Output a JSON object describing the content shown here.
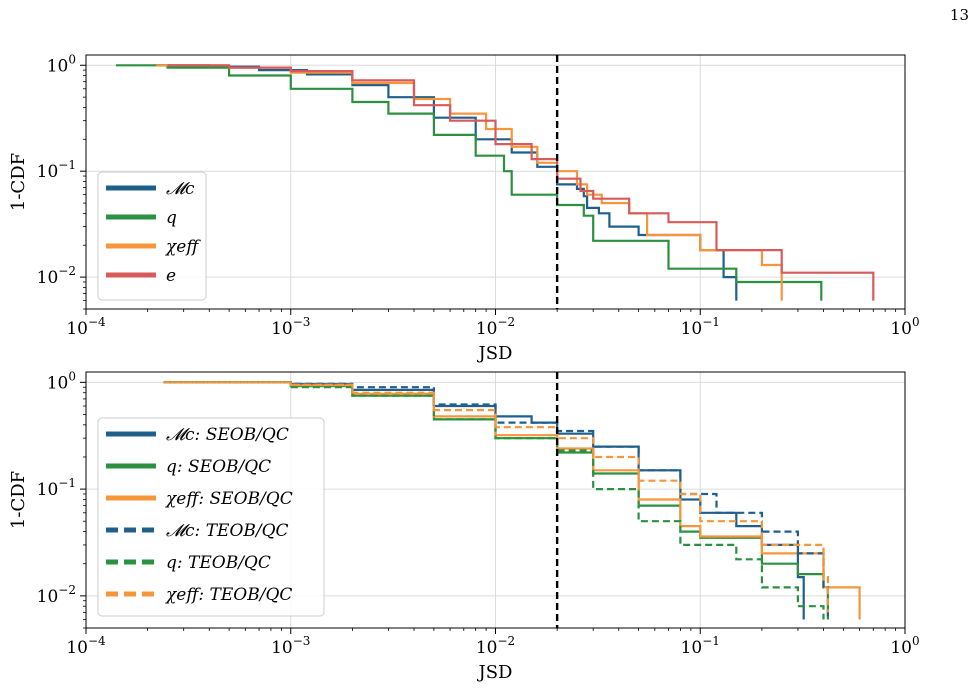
{
  "page": {
    "number": "13"
  },
  "colors": {
    "mc": "#1f5f8b",
    "q": "#2b9140",
    "chi": "#f7953b",
    "e": "#d95a5a",
    "threshold": "#000000",
    "grid": "#dcdcdc"
  },
  "chart_data": [
    {
      "type": "line",
      "xscale": "log",
      "yscale": "log",
      "xlim": [
        0.0001,
        1
      ],
      "ylim": [
        0.005,
        1.25
      ],
      "xlabel": "JSD",
      "ylabel": "1-CDF",
      "x_tick_labels": [
        "10^-4",
        "10^-3",
        "10^-2",
        "10^-1",
        "10^0"
      ],
      "y_tick_labels": [
        "10^-2",
        "10^-1",
        "10^0"
      ],
      "grid": true,
      "legend_position": "lower-left",
      "threshold_vline": 0.02,
      "series": [
        {
          "name": "M_c",
          "legend": "𝓜c",
          "color_key": "mc",
          "style": "solid",
          "points": [
            [
              0.00022,
              1.0
            ],
            [
              0.0004,
              0.97
            ],
            [
              0.0007,
              0.9
            ],
            [
              0.0012,
              0.82
            ],
            [
              0.002,
              0.65
            ],
            [
              0.003,
              0.5
            ],
            [
              0.005,
              0.32
            ],
            [
              0.008,
              0.2
            ],
            [
              0.012,
              0.15
            ],
            [
              0.016,
              0.11
            ],
            [
              0.02,
              0.075
            ],
            [
              0.025,
              0.068
            ],
            [
              0.027,
              0.058
            ],
            [
              0.028,
              0.045
            ],
            [
              0.032,
              0.04
            ],
            [
              0.036,
              0.03
            ],
            [
              0.05,
              0.025
            ],
            [
              0.1,
              0.018
            ],
            [
              0.13,
              0.01
            ],
            [
              0.15,
              0.006
            ]
          ]
        },
        {
          "name": "q",
          "legend": "q",
          "color_key": "q",
          "style": "solid",
          "points": [
            [
              0.00014,
              1.0
            ],
            [
              0.00025,
              0.95
            ],
            [
              0.0005,
              0.8
            ],
            [
              0.001,
              0.6
            ],
            [
              0.002,
              0.45
            ],
            [
              0.003,
              0.35
            ],
            [
              0.005,
              0.22
            ],
            [
              0.008,
              0.14
            ],
            [
              0.011,
              0.1
            ],
            [
              0.012,
              0.06
            ],
            [
              0.02,
              0.048
            ],
            [
              0.027,
              0.038
            ],
            [
              0.03,
              0.022
            ],
            [
              0.07,
              0.012
            ],
            [
              0.15,
              0.009
            ],
            [
              0.39,
              0.006
            ]
          ]
        },
        {
          "name": "chi_eff",
          "legend": "χeff",
          "color_key": "chi",
          "style": "solid",
          "points": [
            [
              0.00022,
              1.0
            ],
            [
              0.0005,
              0.95
            ],
            [
              0.001,
              0.85
            ],
            [
              0.002,
              0.68
            ],
            [
              0.004,
              0.48
            ],
            [
              0.006,
              0.35
            ],
            [
              0.009,
              0.25
            ],
            [
              0.012,
              0.17
            ],
            [
              0.016,
              0.12
            ],
            [
              0.02,
              0.1
            ],
            [
              0.025,
              0.075
            ],
            [
              0.028,
              0.06
            ],
            [
              0.033,
              0.05
            ],
            [
              0.045,
              0.04
            ],
            [
              0.055,
              0.025
            ],
            [
              0.1,
              0.018
            ],
            [
              0.2,
              0.013
            ],
            [
              0.25,
              0.006
            ]
          ]
        },
        {
          "name": "e",
          "legend": "e",
          "color_key": "e",
          "style": "solid",
          "points": [
            [
              0.00025,
              1.0
            ],
            [
              0.0005,
              0.95
            ],
            [
              0.001,
              0.88
            ],
            [
              0.002,
              0.72
            ],
            [
              0.004,
              0.42
            ],
            [
              0.006,
              0.3
            ],
            [
              0.01,
              0.18
            ],
            [
              0.015,
              0.13
            ],
            [
              0.02,
              0.085
            ],
            [
              0.026,
              0.065
            ],
            [
              0.03,
              0.055
            ],
            [
              0.045,
              0.04
            ],
            [
              0.07,
              0.033
            ],
            [
              0.12,
              0.018
            ],
            [
              0.25,
              0.011
            ],
            [
              0.7,
              0.006
            ]
          ]
        }
      ]
    },
    {
      "type": "line",
      "xscale": "log",
      "yscale": "log",
      "xlim": [
        0.0001,
        1
      ],
      "ylim": [
        0.005,
        1.25
      ],
      "xlabel": "JSD",
      "ylabel": "1-CDF",
      "x_tick_labels": [
        "10^-4",
        "10^-3",
        "10^-2",
        "10^-1",
        "10^0"
      ],
      "y_tick_labels": [
        "10^-2",
        "10^-1",
        "10^0"
      ],
      "grid": true,
      "legend_position": "lower-left",
      "threshold_vline": 0.02,
      "series": [
        {
          "name": "M_c SEOB/QC",
          "legend": "𝓜c: SEOB/QC",
          "color_key": "mc",
          "style": "solid",
          "points": [
            [
              0.00024,
              1.0
            ],
            [
              0.001,
              0.96
            ],
            [
              0.002,
              0.85
            ],
            [
              0.005,
              0.6
            ],
            [
              0.01,
              0.48
            ],
            [
              0.015,
              0.42
            ],
            [
              0.02,
              0.33
            ],
            [
              0.03,
              0.25
            ],
            [
              0.05,
              0.15
            ],
            [
              0.08,
              0.08
            ],
            [
              0.1,
              0.06
            ],
            [
              0.15,
              0.045
            ],
            [
              0.2,
              0.03
            ],
            [
              0.3,
              0.015
            ],
            [
              0.32,
              0.006
            ]
          ]
        },
        {
          "name": "q SEOB/QC",
          "legend": "q: SEOB/QC",
          "color_key": "q",
          "style": "solid",
          "points": [
            [
              0.00024,
              1.0
            ],
            [
              0.001,
              0.92
            ],
            [
              0.002,
              0.75
            ],
            [
              0.005,
              0.45
            ],
            [
              0.01,
              0.3
            ],
            [
              0.02,
              0.22
            ],
            [
              0.03,
              0.14
            ],
            [
              0.05,
              0.07
            ],
            [
              0.08,
              0.04
            ],
            [
              0.1,
              0.035
            ],
            [
              0.2,
              0.02
            ],
            [
              0.3,
              0.016
            ],
            [
              0.4,
              0.012
            ],
            [
              0.42,
              0.006
            ]
          ]
        },
        {
          "name": "chi_eff SEOB/QC",
          "legend": "χeff: SEOB/QC",
          "color_key": "chi",
          "style": "solid",
          "points": [
            [
              0.00024,
              1.0
            ],
            [
              0.001,
              0.94
            ],
            [
              0.002,
              0.78
            ],
            [
              0.005,
              0.48
            ],
            [
              0.01,
              0.32
            ],
            [
              0.02,
              0.24
            ],
            [
              0.03,
              0.15
            ],
            [
              0.05,
              0.08
            ],
            [
              0.08,
              0.045
            ],
            [
              0.1,
              0.036
            ],
            [
              0.2,
              0.025
            ],
            [
              0.4,
              0.012
            ],
            [
              0.6,
              0.006
            ]
          ]
        },
        {
          "name": "M_c TEOB/QC",
          "legend": "𝓜c: TEOB/QC",
          "color_key": "mc",
          "style": "dashed",
          "points": [
            [
              0.00024,
              1.0
            ],
            [
              0.001,
              0.97
            ],
            [
              0.002,
              0.9
            ],
            [
              0.005,
              0.62
            ],
            [
              0.01,
              0.42
            ],
            [
              0.02,
              0.35
            ],
            [
              0.03,
              0.25
            ],
            [
              0.05,
              0.15
            ],
            [
              0.08,
              0.09
            ],
            [
              0.12,
              0.06
            ],
            [
              0.2,
              0.04
            ],
            [
              0.3,
              0.025
            ],
            [
              0.4,
              0.012
            ],
            [
              0.42,
              0.006
            ]
          ]
        },
        {
          "name": "q TEOB/QC",
          "legend": "q: TEOB/QC",
          "color_key": "q",
          "style": "dashed",
          "points": [
            [
              0.00024,
              1.0
            ],
            [
              0.001,
              0.9
            ],
            [
              0.002,
              0.75
            ],
            [
              0.005,
              0.45
            ],
            [
              0.01,
              0.3
            ],
            [
              0.02,
              0.23
            ],
            [
              0.03,
              0.1
            ],
            [
              0.05,
              0.05
            ],
            [
              0.08,
              0.03
            ],
            [
              0.15,
              0.022
            ],
            [
              0.2,
              0.012
            ],
            [
              0.3,
              0.008
            ],
            [
              0.4,
              0.006
            ]
          ]
        },
        {
          "name": "chi_eff TEOB/QC",
          "legend": "χeff: TEOB/QC",
          "color_key": "chi",
          "style": "dashed",
          "points": [
            [
              0.00024,
              1.0
            ],
            [
              0.001,
              0.95
            ],
            [
              0.002,
              0.8
            ],
            [
              0.005,
              0.55
            ],
            [
              0.01,
              0.38
            ],
            [
              0.02,
              0.3
            ],
            [
              0.03,
              0.2
            ],
            [
              0.05,
              0.12
            ],
            [
              0.08,
              0.09
            ],
            [
              0.1,
              0.05
            ],
            [
              0.2,
              0.03
            ],
            [
              0.4,
              0.015
            ],
            [
              0.42,
              0.007
            ]
          ]
        }
      ]
    }
  ]
}
